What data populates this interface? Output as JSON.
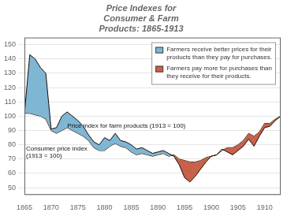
{
  "chart_data": {
    "type": "line",
    "title": "Price Indexes for\nConsumer & Farm\nProducts: 1865-1913",
    "x": [
      1865,
      1866,
      1867,
      1868,
      1869,
      1870,
      1871,
      1872,
      1873,
      1874,
      1875,
      1876,
      1877,
      1878,
      1879,
      1880,
      1881,
      1882,
      1883,
      1884,
      1885,
      1886,
      1887,
      1888,
      1889,
      1890,
      1891,
      1892,
      1893,
      1894,
      1895,
      1896,
      1897,
      1898,
      1899,
      1900,
      1901,
      1902,
      1903,
      1904,
      1905,
      1906,
      1907,
      1908,
      1909,
      1910,
      1911,
      1912,
      1913
    ],
    "series": [
      {
        "color": "#1A0A00",
        "values": [
          102,
          143,
          140,
          134,
          130,
          91,
          92,
          100,
          103,
          100,
          97,
          93,
          87,
          82,
          80,
          85,
          83,
          88,
          83,
          82,
          80,
          77,
          78,
          76,
          74,
          75,
          76,
          74,
          72,
          66,
          57,
          54,
          58,
          63,
          68,
          72,
          73,
          77,
          75,
          73,
          76,
          79,
          84,
          79,
          86,
          92,
          93,
          97,
          100
        ]
      },
      {
        "color": "#1A0A00",
        "values": [
          102,
          102,
          101,
          100,
          98,
          90,
          88,
          90,
          92,
          90,
          88,
          86,
          83,
          78,
          76,
          76,
          79,
          81,
          79,
          78,
          75,
          73,
          74,
          73,
          72,
          73,
          74,
          72,
          73,
          70,
          69,
          68,
          68,
          69,
          71,
          72,
          73,
          76,
          78,
          78,
          80,
          83,
          88,
          86,
          89,
          95,
          95,
          98,
          100
        ]
      }
    ],
    "areas": [
      {
        "name": "Farmers receive better prices for their\nproducts than they pay for purchases.",
        "color": "#7EB6D4"
      },
      {
        "name": "Farmers pay more for purchases than\nthey receive for their products.",
        "color": "#C8614A"
      }
    ],
    "annotations": [
      {
        "text": "Price index for farm products (1913 = 100)",
        "x": 1873,
        "y": 96
      },
      {
        "text": "Consumer price index\n(1913 = 100)",
        "x": 1865.3,
        "y": 80
      }
    ],
    "xlim": [
      1865,
      1913
    ],
    "xticks": [
      1865,
      1870,
      1875,
      1880,
      1885,
      1890,
      1895,
      1900,
      1905,
      1910
    ],
    "ylim": [
      45,
      155
    ],
    "yticks": [
      50,
      60,
      70,
      80,
      90,
      100,
      110,
      120,
      130,
      140,
      150
    ],
    "grid": "y",
    "legend": "upper right"
  }
}
